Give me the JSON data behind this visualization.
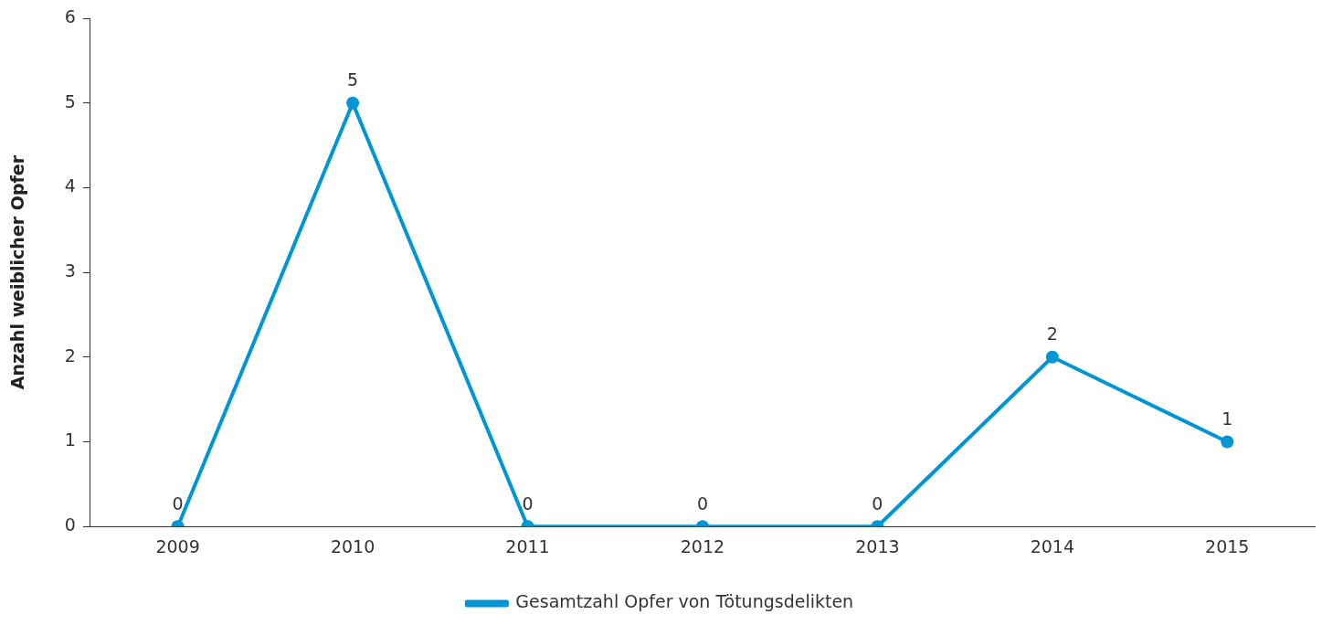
{
  "chart_data": {
    "type": "line",
    "ylabel": "Anzahl weiblicher Opfer",
    "categories": [
      "2009",
      "2010",
      "2011",
      "2012",
      "2013",
      "2014",
      "2015"
    ],
    "series": [
      {
        "name": "Gesamtzahl Opfer von Tötungsdelikten",
        "color": "#0095d5",
        "values": [
          0,
          5,
          0,
          0,
          0,
          2,
          1
        ]
      }
    ],
    "ylim": [
      0,
      6
    ],
    "yticks": [
      0,
      1,
      2,
      3,
      4,
      5,
      6
    ],
    "grid": false,
    "legend": "bottom",
    "marker": "circle",
    "line_style": "solid",
    "data_labels": true
  }
}
